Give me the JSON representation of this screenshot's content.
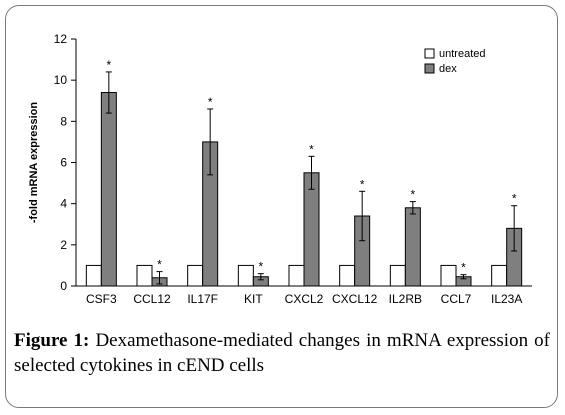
{
  "figure": {
    "label": "Figure 1:",
    "caption": " Dexamethasone-mediated changes in mRNA expression of selected cytokines in cEND cells"
  },
  "chart_data": {
    "type": "bar",
    "ylabel": "-fold mRNA expression",
    "xlabel": "",
    "ylim": [
      0,
      12
    ],
    "yticks": [
      0,
      2,
      4,
      6,
      8,
      10,
      12
    ],
    "grid": false,
    "legend_position": "top-right",
    "categories": [
      "CSF3",
      "CCL12",
      "IL17F",
      "KIT",
      "CXCL2",
      "CXCL12",
      "IL2RB",
      "CCL7",
      "IL23A"
    ],
    "series": [
      {
        "name": "untreated",
        "color": "#ffffff",
        "values": [
          1,
          1,
          1,
          1,
          1,
          1,
          1,
          1,
          1
        ]
      },
      {
        "name": "dex",
        "color": "#7f7f7f",
        "values": [
          9.4,
          0.4,
          7.0,
          0.45,
          5.5,
          3.4,
          3.8,
          0.45,
          2.8
        ],
        "errors": [
          1.0,
          0.3,
          1.6,
          0.15,
          0.8,
          1.2,
          0.3,
          0.1,
          1.1
        ],
        "significance": [
          "*",
          "*",
          "*",
          "*",
          "*",
          "*",
          "*",
          "*",
          "*"
        ]
      }
    ]
  }
}
